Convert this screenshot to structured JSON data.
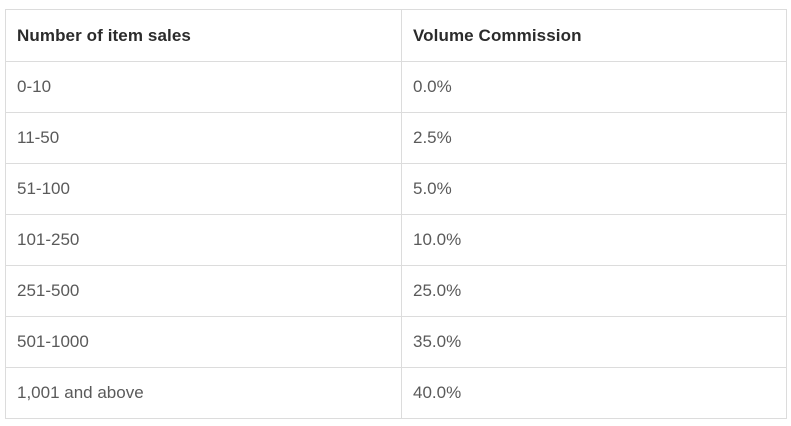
{
  "table": {
    "headers": [
      "Number of item sales",
      "Volume Commission"
    ],
    "rows": [
      [
        "0-10",
        "0.0%"
      ],
      [
        "11-50",
        "2.5%"
      ],
      [
        "51-100",
        "5.0%"
      ],
      [
        "101-250",
        "10.0%"
      ],
      [
        "251-500",
        "25.0%"
      ],
      [
        "501-1000",
        "35.0%"
      ],
      [
        "1,001 and above",
        "40.0%"
      ]
    ]
  }
}
